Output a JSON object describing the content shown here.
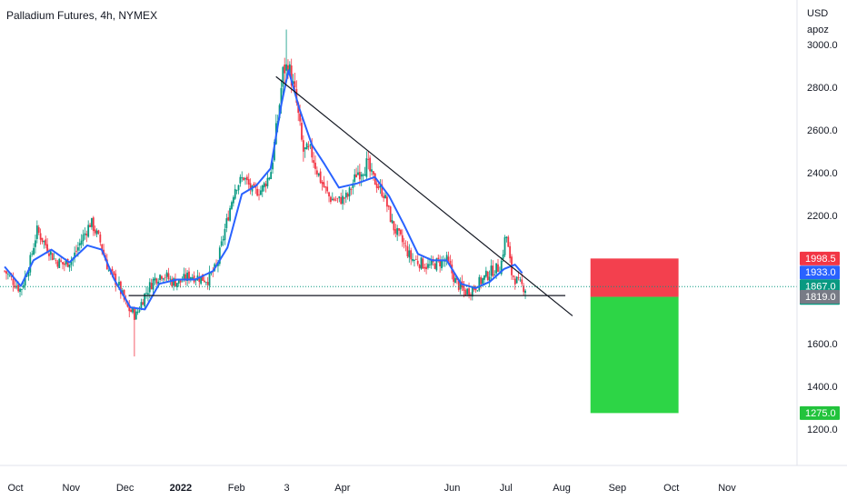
{
  "chart_data": {
    "type": "candlestick",
    "title": "Palladium Futures, 4h, NYMEX",
    "currency": "USD",
    "unit": "apoz",
    "ylim": [
      1080,
      3070
    ],
    "y_ticks": [
      1200,
      1400,
      1600,
      2000,
      2200,
      2400,
      2600,
      2800,
      3000
    ],
    "y_tick_labels": [
      "1200.0",
      "1400.0",
      "1600.0",
      "2000.0",
      "2200.0",
      "2400.0",
      "2600.0",
      "2800.0",
      "3000.0"
    ],
    "x_ticks": [
      {
        "label": "Oct",
        "t": 0
      },
      {
        "label": "Nov",
        "t": 31
      },
      {
        "label": "Dec",
        "t": 61
      },
      {
        "label": "2022",
        "t": 92
      },
      {
        "label": "Feb",
        "t": 123
      },
      {
        "label": "3",
        "t": 151
      },
      {
        "label": "Apr",
        "t": 182
      },
      {
        "label": "Jun",
        "t": 243
      },
      {
        "label": "Jul",
        "t": 273
      },
      {
        "label": "Aug",
        "t": 304
      },
      {
        "label": "Sep",
        "t": 335
      },
      {
        "label": "Oct",
        "t": 365
      },
      {
        "label": "Nov",
        "t": 396
      }
    ],
    "price_path": [
      [
        -6,
        1940
      ],
      [
        -2,
        1900
      ],
      [
        3,
        1850
      ],
      [
        8,
        1980
      ],
      [
        12,
        2130
      ],
      [
        17,
        2060
      ],
      [
        22,
        1990
      ],
      [
        27,
        1970
      ],
      [
        32,
        2000
      ],
      [
        37,
        2090
      ],
      [
        42,
        2170
      ],
      [
        47,
        2080
      ],
      [
        52,
        1940
      ],
      [
        57,
        1880
      ],
      [
        62,
        1770
      ],
      [
        67,
        1730
      ],
      [
        72,
        1830
      ],
      [
        77,
        1900
      ],
      [
        82,
        1930
      ],
      [
        87,
        1890
      ],
      [
        92,
        1890
      ],
      [
        97,
        1920
      ],
      [
        102,
        1910
      ],
      [
        107,
        1900
      ],
      [
        112,
        1960
      ],
      [
        117,
        2150
      ],
      [
        122,
        2330
      ],
      [
        127,
        2380
      ],
      [
        132,
        2310
      ],
      [
        137,
        2320
      ],
      [
        142,
        2400
      ],
      [
        146,
        2650
      ],
      [
        149,
        2880
      ],
      [
        152,
        2900
      ],
      [
        156,
        2750
      ],
      [
        160,
        2500
      ],
      [
        165,
        2490
      ],
      [
        170,
        2360
      ],
      [
        175,
        2280
      ],
      [
        180,
        2270
      ],
      [
        185,
        2290
      ],
      [
        190,
        2400
      ],
      [
        195,
        2440
      ],
      [
        200,
        2360
      ],
      [
        205,
        2300
      ],
      [
        210,
        2150
      ],
      [
        215,
        2080
      ],
      [
        220,
        2000
      ],
      [
        225,
        1980
      ],
      [
        230,
        1960
      ],
      [
        235,
        1980
      ],
      [
        240,
        1990
      ],
      [
        245,
        1890
      ],
      [
        250,
        1840
      ],
      [
        255,
        1860
      ],
      [
        260,
        1900
      ],
      [
        265,
        1940
      ],
      [
        270,
        1960
      ],
      [
        273,
        2120
      ],
      [
        276,
        1930
      ],
      [
        280,
        1880
      ],
      [
        284,
        1860
      ]
    ],
    "wick_extremes": {
      "high": 3070,
      "low": 1540
    },
    "moving_average": {
      "color": "#2962ff",
      "values": [
        [
          -6,
          1960
        ],
        [
          3,
          1870
        ],
        [
          10,
          1990
        ],
        [
          20,
          2040
        ],
        [
          30,
          1980
        ],
        [
          40,
          2060
        ],
        [
          48,
          2040
        ],
        [
          55,
          1900
        ],
        [
          64,
          1770
        ],
        [
          72,
          1760
        ],
        [
          80,
          1880
        ],
        [
          90,
          1900
        ],
        [
          100,
          1900
        ],
        [
          110,
          1940
        ],
        [
          118,
          2050
        ],
        [
          126,
          2300
        ],
        [
          134,
          2340
        ],
        [
          142,
          2420
        ],
        [
          148,
          2720
        ],
        [
          152,
          2880
        ],
        [
          158,
          2700
        ],
        [
          165,
          2530
        ],
        [
          172,
          2440
        ],
        [
          180,
          2330
        ],
        [
          190,
          2350
        ],
        [
          200,
          2380
        ],
        [
          208,
          2290
        ],
        [
          216,
          2160
        ],
        [
          224,
          2020
        ],
        [
          232,
          1990
        ],
        [
          240,
          1990
        ],
        [
          248,
          1880
        ],
        [
          256,
          1860
        ],
        [
          264,
          1890
        ],
        [
          272,
          1950
        ],
        [
          278,
          1970
        ],
        [
          282,
          1930
        ]
      ]
    },
    "trendlines": [
      {
        "name": "descending-trendline",
        "color": "#131722",
        "points": [
          [
            145,
            2850
          ],
          [
            310,
            1730
          ]
        ]
      },
      {
        "name": "support-line",
        "color": "#131722",
        "points": [
          [
            63,
            1825
          ],
          [
            306,
            1825
          ]
        ]
      }
    ],
    "last_price_line": {
      "value": 1867,
      "color": "#089981"
    },
    "position_tool": {
      "t_start": 320,
      "t_end": 369,
      "entry": 1819.0,
      "stop": 1998.5,
      "target": 1275.0,
      "risk_color": "#f23645",
      "reward_color": "#22d33c"
    },
    "price_badges": [
      {
        "label": "1998.5",
        "value": 1998.5,
        "color": "#f23645"
      },
      {
        "label": "1933.0",
        "value": 1933.0,
        "color": "#2962ff"
      },
      {
        "label": "1867.0",
        "value": 1867.0,
        "color": "#089981",
        "sub": "01:45:34"
      },
      {
        "label": "1819.0",
        "value": 1819.0,
        "color": "#787b86"
      },
      {
        "label": "1275.0",
        "value": 1275.0,
        "color": "#22c33c"
      }
    ],
    "candle_up_color": "#089981",
    "candle_down_color": "#f23645",
    "grid": false
  }
}
